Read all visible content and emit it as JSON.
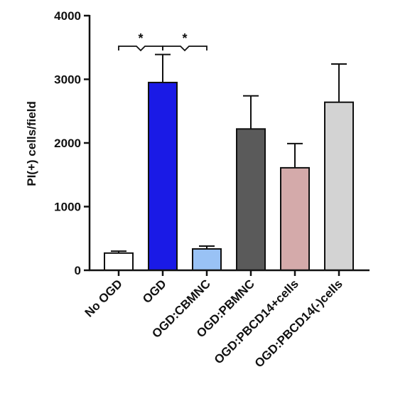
{
  "chart_data": {
    "type": "bar",
    "title": "",
    "xlabel": "",
    "ylabel": "PI(+) cells/field",
    "ylim": [
      0,
      4000
    ],
    "yticks": [
      0,
      1000,
      2000,
      3000,
      4000
    ],
    "categories": [
      "No OGD",
      "OGD",
      "OGD:CBMNC",
      "OGD:PBMNC",
      "OGD:PBCD14+cells",
      "OGD:PBCD14(-)cells"
    ],
    "values": [
      270,
      2950,
      335,
      2220,
      1610,
      2640
    ],
    "error_upper": [
      300,
      3390,
      380,
      2740,
      1990,
      3240
    ],
    "colors": [
      "#ffffff",
      "#1a1ae6",
      "#99c2f5",
      "#5a5a5a",
      "#d4aaaa",
      "#d3d3d3"
    ],
    "significance": [
      {
        "between": [
          "No OGD",
          "OGD"
        ],
        "label": "*"
      },
      {
        "between": [
          "OGD",
          "OGD:CBMNC"
        ],
        "label": "*"
      }
    ],
    "grid": false,
    "legend": "none"
  }
}
